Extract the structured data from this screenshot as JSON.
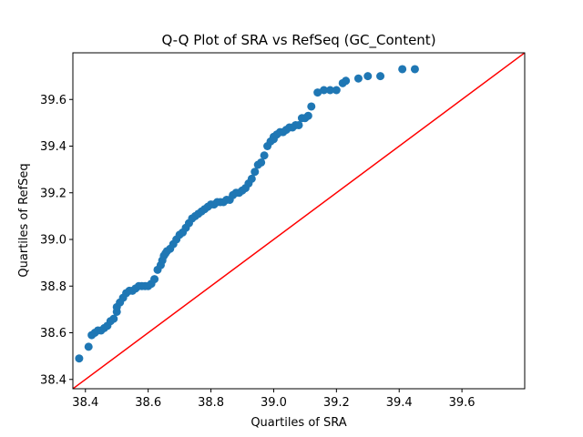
{
  "chart_data": {
    "type": "scatter",
    "title": "Q-Q Plot of SRA vs RefSeq (GC_Content)",
    "xlabel": "Quartiles of SRA",
    "ylabel": "Quartiles of RefSeq",
    "xlim": [
      38.36,
      39.8
    ],
    "ylim": [
      38.36,
      39.8
    ],
    "xticks": [
      "38.4",
      "38.6",
      "38.8",
      "39.0",
      "39.2",
      "39.4",
      "39.6"
    ],
    "yticks": [
      "38.4",
      "38.6",
      "38.8",
      "39.0",
      "39.2",
      "39.4",
      "39.6"
    ],
    "grid": false,
    "marker_color": "#1f77b4",
    "reference_line": {
      "from": [
        38.36,
        38.36
      ],
      "to": [
        39.8,
        39.8
      ],
      "color": "#ff0000"
    },
    "x": [
      38.38,
      38.41,
      38.42,
      38.43,
      38.44,
      38.45,
      38.46,
      38.47,
      38.48,
      38.49,
      38.5,
      38.5,
      38.51,
      38.52,
      38.53,
      38.54,
      38.55,
      38.56,
      38.57,
      38.58,
      38.59,
      38.6,
      38.61,
      38.62,
      38.63,
      38.64,
      38.645,
      38.65,
      38.655,
      38.66,
      38.67,
      38.68,
      38.69,
      38.7,
      38.71,
      38.72,
      38.73,
      38.74,
      38.75,
      38.76,
      38.77,
      38.78,
      38.79,
      38.8,
      38.81,
      38.82,
      38.83,
      38.84,
      38.85,
      38.86,
      38.87,
      38.88,
      38.89,
      38.9,
      38.91,
      38.92,
      38.93,
      38.94,
      38.95,
      38.96,
      38.97,
      38.98,
      38.99,
      39.0,
      39.0,
      39.01,
      39.02,
      39.03,
      39.04,
      39.05,
      39.06,
      39.07,
      39.08,
      39.09,
      39.1,
      39.11,
      39.12,
      39.14,
      39.16,
      39.18,
      39.2,
      39.22,
      39.23,
      39.27,
      39.3,
      39.34,
      39.41,
      39.45
    ],
    "y": [
      38.49,
      38.54,
      38.59,
      38.6,
      38.61,
      38.61,
      38.62,
      38.63,
      38.65,
      38.66,
      38.69,
      38.71,
      38.73,
      38.75,
      38.77,
      38.78,
      38.78,
      38.79,
      38.8,
      38.8,
      38.8,
      38.8,
      38.81,
      38.83,
      38.87,
      38.89,
      38.91,
      38.93,
      38.94,
      38.95,
      38.96,
      38.98,
      39.0,
      39.02,
      39.03,
      39.05,
      39.07,
      39.09,
      39.1,
      39.11,
      39.12,
      39.13,
      39.14,
      39.15,
      39.15,
      39.16,
      39.16,
      39.16,
      39.17,
      39.17,
      39.19,
      39.2,
      39.2,
      39.21,
      39.22,
      39.24,
      39.26,
      39.29,
      39.32,
      39.33,
      39.36,
      39.4,
      39.42,
      39.43,
      39.44,
      39.45,
      39.46,
      39.46,
      39.47,
      39.48,
      39.48,
      39.49,
      39.49,
      39.52,
      39.52,
      39.53,
      39.57,
      39.63,
      39.64,
      39.64,
      39.64,
      39.67,
      39.68,
      39.69,
      39.7,
      39.7,
      39.73,
      39.73
    ]
  }
}
